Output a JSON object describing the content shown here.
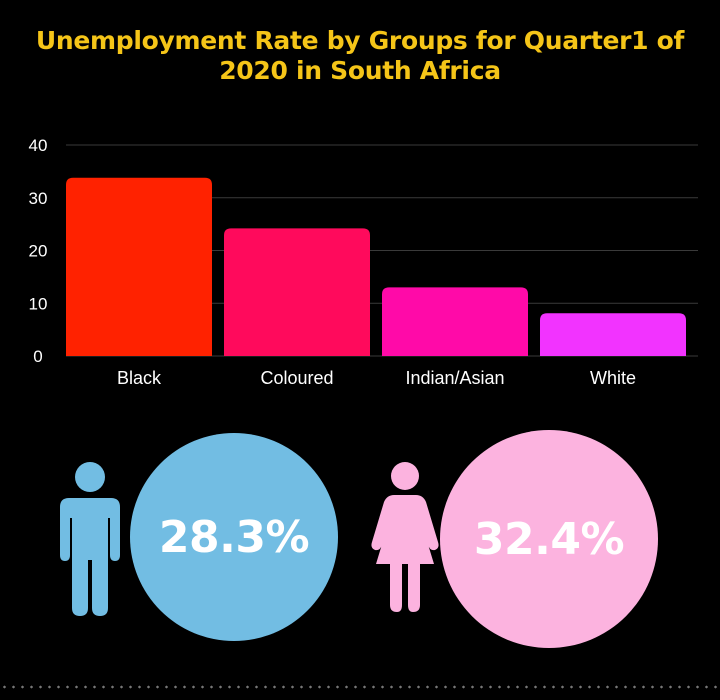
{
  "chart_data": {
    "type": "bar",
    "title": "Unemployment Rate by Groups for Quarter1 of 2020 in South Africa",
    "categories": [
      "Black",
      "Coloured",
      "Indian/Asian",
      "White"
    ],
    "values": [
      33.8,
      24.2,
      13.0,
      8.1
    ],
    "colors": [
      "#ff2200",
      "#ff0a5c",
      "#ff0aa8",
      "#f233ff"
    ],
    "ylim": [
      0,
      40
    ],
    "yticks": [
      "0",
      "10",
      "20",
      "30",
      "40"
    ],
    "grid": true,
    "legend": "none"
  },
  "gender_stats": {
    "male": {
      "value_label": "28.3%",
      "icon": "male-person-icon",
      "color": "#72bde3"
    },
    "female": {
      "value_label": "32.4%",
      "icon": "female-person-icon",
      "color": "#fcb3df"
    }
  }
}
